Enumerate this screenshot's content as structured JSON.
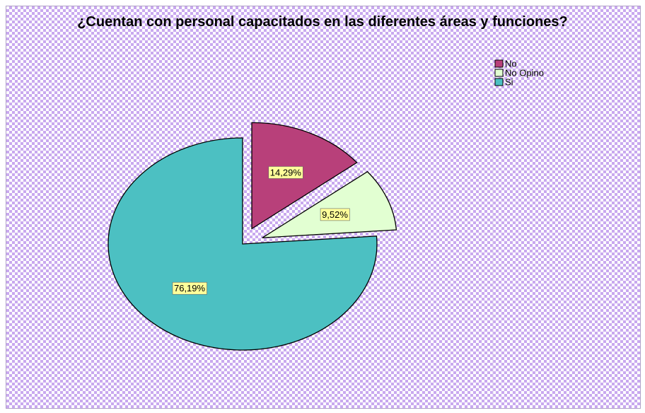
{
  "chart_data": {
    "type": "pie",
    "title": "¿Cuentan con personal capacitados en las diferentes áreas y funciones?",
    "categories": [
      "No",
      "No Opino",
      "Si"
    ],
    "values": [
      14.29,
      9.52,
      76.19
    ],
    "value_labels": [
      "14,29%",
      "9,52%",
      "76,19%"
    ],
    "colors": [
      "#b8407a",
      "#e2ffd2",
      "#4cc0c2"
    ],
    "exploded": [
      true,
      true,
      false
    ],
    "legend": "top-right"
  }
}
